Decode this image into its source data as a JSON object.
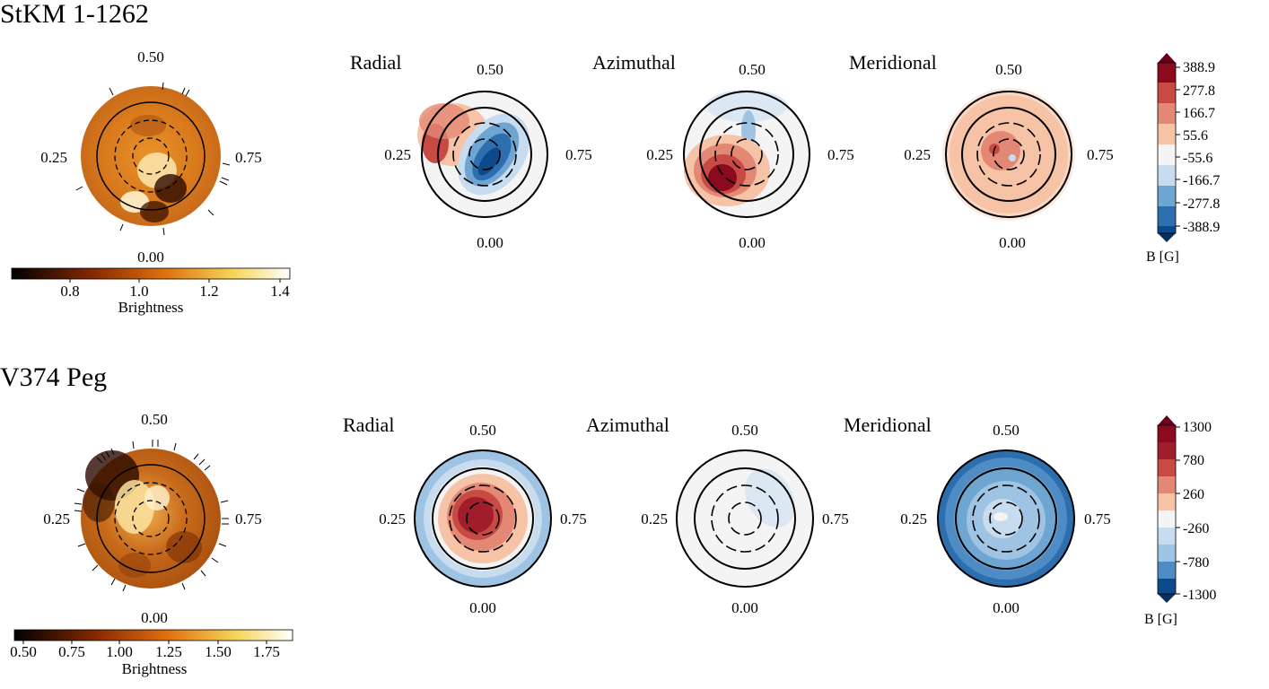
{
  "figure": {
    "rows": [
      {
        "star_name": "StKM 1-1262",
        "brightness_map": {
          "phase_labels": {
            "top": "0.50",
            "left": "0.25",
            "right": "0.75",
            "bottom": "0.00"
          },
          "colorbar": {
            "label": "Brightness",
            "ticks": [
              "0.8",
              "1.0",
              "1.2",
              "1.4"
            ]
          }
        },
        "magnetic_maps": [
          {
            "component": "Radial",
            "phase_labels": {
              "top": "0.50",
              "left": "0.25",
              "right": "0.75",
              "bottom": "0.00"
            }
          },
          {
            "component": "Azimuthal",
            "phase_labels": {
              "top": "0.50",
              "left": "0.25",
              "right": "0.75",
              "bottom": "0.00"
            }
          },
          {
            "component": "Meridional",
            "phase_labels": {
              "top": "0.50",
              "left": "0.25",
              "right": "0.75",
              "bottom": "0.00"
            }
          }
        ],
        "field_colorbar": {
          "label": "B [G]",
          "ticks": [
            "388.9",
            "277.8",
            "166.7",
            "55.6",
            "-55.6",
            "-166.7",
            "-277.8",
            "-388.9"
          ]
        }
      },
      {
        "star_name": "V374 Peg",
        "brightness_map": {
          "phase_labels": {
            "top": "0.50",
            "left": "0.25",
            "right": "0.75",
            "bottom": "0.00"
          },
          "colorbar": {
            "label": "Brightness",
            "ticks": [
              "0.50",
              "0.75",
              "1.00",
              "1.25",
              "1.50",
              "1.75"
            ]
          }
        },
        "magnetic_maps": [
          {
            "component": "Radial",
            "phase_labels": {
              "top": "0.50",
              "left": "0.25",
              "right": "0.75",
              "bottom": "0.00"
            }
          },
          {
            "component": "Azimuthal",
            "phase_labels": {
              "top": "0.50",
              "left": "0.25",
              "right": "0.75",
              "bottom": "0.00"
            }
          },
          {
            "component": "Meridional",
            "phase_labels": {
              "top": "0.50",
              "left": "0.25",
              "right": "0.75",
              "bottom": "0.00"
            }
          }
        ],
        "field_colorbar": {
          "label": "B [G]",
          "ticks": [
            "1300",
            "780",
            "260",
            "-260",
            "-780",
            "-1300"
          ]
        }
      }
    ],
    "colors": {
      "brightness_dark": "#1a0500",
      "brightness_mid": "#c8650f",
      "brightness_bright": "#fff8e0",
      "positive_field": "#8b0a1e",
      "negative_field": "#0d4a8c",
      "neutral_field": "#f4f4f4"
    }
  }
}
